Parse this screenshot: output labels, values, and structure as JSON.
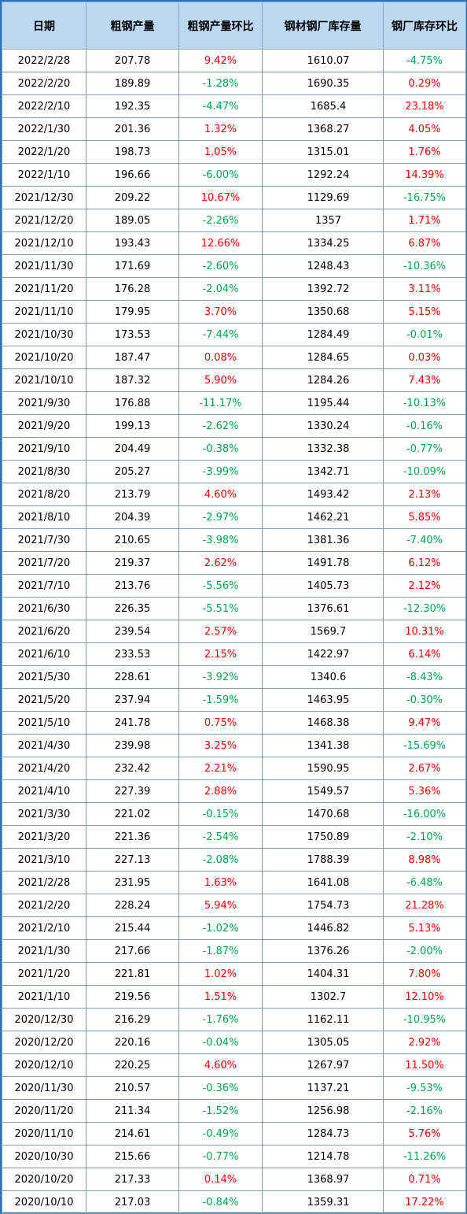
{
  "headers": [
    "日期",
    "粗钢产量",
    "粗钢产量环比",
    "钢材钢厂库存量",
    "钢厂库存环比"
  ],
  "colors": {
    "header_bg": "#bdd7ee",
    "positive": "#ff0000",
    "negative": "#00a650",
    "border": "#2e74b5"
  },
  "rows": [
    [
      "2022/2/28",
      "207.78",
      "9.42%",
      "1610.07",
      "-4.75%"
    ],
    [
      "2022/2/20",
      "189.89",
      "-1.28%",
      "1690.35",
      "0.29%"
    ],
    [
      "2022/2/10",
      "192.35",
      "-4.47%",
      "1685.4",
      "23.18%"
    ],
    [
      "2022/1/30",
      "201.36",
      "1.32%",
      "1368.27",
      "4.05%"
    ],
    [
      "2022/1/20",
      "198.73",
      "1.05%",
      "1315.01",
      "1.76%"
    ],
    [
      "2022/1/10",
      "196.66",
      "-6.00%",
      "1292.24",
      "14.39%"
    ],
    [
      "2021/12/30",
      "209.22",
      "10.67%",
      "1129.69",
      "-16.75%"
    ],
    [
      "2021/12/20",
      "189.05",
      "-2.26%",
      "1357",
      "1.71%"
    ],
    [
      "2021/12/10",
      "193.43",
      "12.66%",
      "1334.25",
      "6.87%"
    ],
    [
      "2021/11/30",
      "171.69",
      "-2.60%",
      "1248.43",
      "-10.36%"
    ],
    [
      "2021/11/20",
      "176.28",
      "-2.04%",
      "1392.72",
      "3.11%"
    ],
    [
      "2021/11/10",
      "179.95",
      "3.70%",
      "1350.68",
      "5.15%"
    ],
    [
      "2021/10/30",
      "173.53",
      "-7.44%",
      "1284.49",
      "-0.01%"
    ],
    [
      "2021/10/20",
      "187.47",
      "0.08%",
      "1284.65",
      "0.03%"
    ],
    [
      "2021/10/10",
      "187.32",
      "5.90%",
      "1284.26",
      "7.43%"
    ],
    [
      "2021/9/30",
      "176.88",
      "-11.17%",
      "1195.44",
      "-10.13%"
    ],
    [
      "2021/9/20",
      "199.13",
      "-2.62%",
      "1330.24",
      "-0.16%"
    ],
    [
      "2021/9/10",
      "204.49",
      "-0.38%",
      "1332.38",
      "-0.77%"
    ],
    [
      "2021/8/30",
      "205.27",
      "-3.99%",
      "1342.71",
      "-10.09%"
    ],
    [
      "2021/8/20",
      "213.79",
      "4.60%",
      "1493.42",
      "2.13%"
    ],
    [
      "2021/8/10",
      "204.39",
      "-2.97%",
      "1462.21",
      "5.85%"
    ],
    [
      "2021/7/30",
      "210.65",
      "-3.98%",
      "1381.36",
      "-7.40%"
    ],
    [
      "2021/7/20",
      "219.37",
      "2.62%",
      "1491.78",
      "6.12%"
    ],
    [
      "2021/7/10",
      "213.76",
      "-5.56%",
      "1405.73",
      "2.12%"
    ],
    [
      "2021/6/30",
      "226.35",
      "-5.51%",
      "1376.61",
      "-12.30%"
    ],
    [
      "2021/6/20",
      "239.54",
      "2.57%",
      "1569.7",
      "10.31%"
    ],
    [
      "2021/6/10",
      "233.53",
      "2.15%",
      "1422.97",
      "6.14%"
    ],
    [
      "2021/5/30",
      "228.61",
      "-3.92%",
      "1340.6",
      "-8.43%"
    ],
    [
      "2021/5/20",
      "237.94",
      "-1.59%",
      "1463.95",
      "-0.30%"
    ],
    [
      "2021/5/10",
      "241.78",
      "0.75%",
      "1468.38",
      "9.47%"
    ],
    [
      "2021/4/30",
      "239.98",
      "3.25%",
      "1341.38",
      "-15.69%"
    ],
    [
      "2021/4/20",
      "232.42",
      "2.21%",
      "1590.95",
      "2.67%"
    ],
    [
      "2021/4/10",
      "227.39",
      "2.88%",
      "1549.57",
      "5.36%"
    ],
    [
      "2021/3/30",
      "221.02",
      "-0.15%",
      "1470.68",
      "-16.00%"
    ],
    [
      "2021/3/20",
      "221.36",
      "-2.54%",
      "1750.89",
      "-2.10%"
    ],
    [
      "2021/3/10",
      "227.13",
      "-2.08%",
      "1788.39",
      "8.98%"
    ],
    [
      "2021/2/28",
      "231.95",
      "1.63%",
      "1641.08",
      "-6.48%"
    ],
    [
      "2021/2/20",
      "228.24",
      "5.94%",
      "1754.73",
      "21.28%"
    ],
    [
      "2021/2/10",
      "215.44",
      "-1.02%",
      "1446.82",
      "5.13%"
    ],
    [
      "2021/1/30",
      "217.66",
      "-1.87%",
      "1376.26",
      "-2.00%"
    ],
    [
      "2021/1/20",
      "221.81",
      "1.02%",
      "1404.31",
      "7.80%"
    ],
    [
      "2021/1/10",
      "219.56",
      "1.51%",
      "1302.7",
      "12.10%"
    ],
    [
      "2020/12/30",
      "216.29",
      "-1.76%",
      "1162.11",
      "-10.95%"
    ],
    [
      "2020/12/20",
      "220.16",
      "-0.04%",
      "1305.05",
      "2.92%"
    ],
    [
      "2020/12/10",
      "220.25",
      "4.60%",
      "1267.97",
      "11.50%"
    ],
    [
      "2020/11/30",
      "210.57",
      "-0.36%",
      "1137.21",
      "-9.53%"
    ],
    [
      "2020/11/20",
      "211.34",
      "-1.52%",
      "1256.98",
      "-2.16%"
    ],
    [
      "2020/11/10",
      "214.61",
      "-0.49%",
      "1284.73",
      "5.76%"
    ],
    [
      "2020/10/30",
      "215.66",
      "-0.77%",
      "1214.78",
      "-11.26%"
    ],
    [
      "2020/10/20",
      "217.33",
      "0.14%",
      "1368.97",
      "0.71%"
    ],
    [
      "2020/10/10",
      "217.03",
      "-0.84%",
      "1359.31",
      "17.22%"
    ]
  ]
}
